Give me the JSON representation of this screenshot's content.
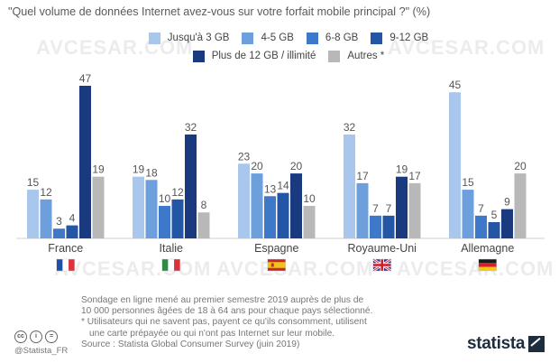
{
  "title": "\"Quel volume de données Internet avez-vous sur votre forfait mobile principal ?\" (%)",
  "watermark_text": "AVCESAR.COM",
  "chart_data": {
    "type": "bar",
    "categories": [
      "France",
      "Italie",
      "Espagne",
      "Royaume-Uni",
      "Allemagne"
    ],
    "series": [
      {
        "name": "Jusqu'à 3 GB",
        "color": "#a9c6ec",
        "values": [
          15,
          19,
          23,
          32,
          45
        ]
      },
      {
        "name": "4-5 GB",
        "color": "#6e9fdd",
        "values": [
          12,
          18,
          20,
          17,
          15
        ]
      },
      {
        "name": "6-8 GB",
        "color": "#3d78c9",
        "values": [
          3,
          10,
          13,
          7,
          7
        ]
      },
      {
        "name": "9-12 GB",
        "color": "#2456a6",
        "values": [
          4,
          12,
          14,
          7,
          5
        ]
      },
      {
        "name": "Plus de 12 GB / illimité",
        "color": "#1a3a80",
        "values": [
          47,
          32,
          20,
          19,
          9
        ]
      },
      {
        "name": "Autres *",
        "color": "#b8b8b8",
        "values": [
          19,
          8,
          10,
          17,
          20
        ]
      }
    ],
    "flags": [
      "france-flag",
      "italy-flag",
      "spain-flag",
      "uk-flag",
      "germany-flag"
    ],
    "ylim": [
      0,
      50
    ],
    "xlabel": "",
    "ylabel": ""
  },
  "footnote": {
    "line1": "Sondage en ligne mené au premier semestre 2019 auprès de plus de",
    "line2": "10 000 personnes âgées de 18 à 64 ans pour chaque pays sélectionné.",
    "line3": "* Utilisateurs qui ne savent pas, payent ce qu'ils consomment, utilisent",
    "line4": "une carte prépayée ou qui n'ont pas Internet sur leur mobile.",
    "line5": "Source : Statista Global Consumer Survey (juin 2019)"
  },
  "license": {
    "cc": "cc",
    "by": "i",
    "nd": "="
  },
  "handle": "@Statista_FR",
  "brand": "statista"
}
